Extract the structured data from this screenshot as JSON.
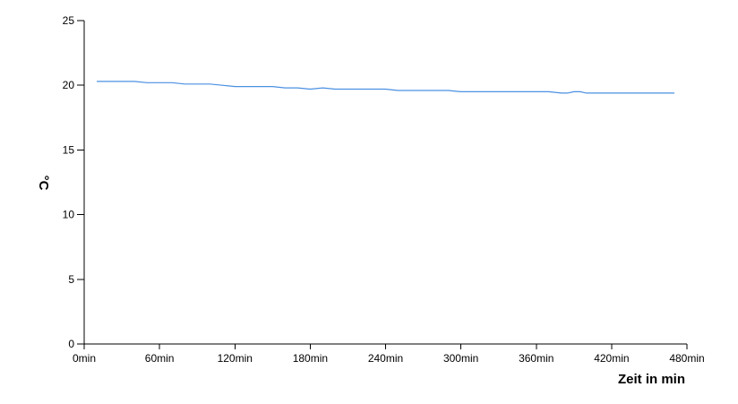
{
  "chart_data": {
    "type": "line",
    "title": "",
    "xlabel": "Zeit in min",
    "ylabel": "°C",
    "xlim": [
      0,
      480
    ],
    "ylim": [
      0,
      25
    ],
    "x_ticks": [
      0,
      60,
      120,
      180,
      240,
      300,
      360,
      420,
      480
    ],
    "x_tick_labels": [
      "0min",
      "60min",
      "120min",
      "180min",
      "240min",
      "300min",
      "360min",
      "420min",
      "480min"
    ],
    "y_ticks": [
      0,
      5,
      10,
      15,
      20,
      25
    ],
    "y_tick_labels": [
      "0",
      "5",
      "10",
      "15",
      "20",
      "25"
    ],
    "grid": false,
    "legend": "none",
    "series": [
      {
        "color": "#4a90e2",
        "x": [
          10,
          20,
          30,
          40,
          50,
          60,
          70,
          80,
          90,
          100,
          110,
          120,
          130,
          140,
          150,
          160,
          170,
          180,
          190,
          200,
          210,
          220,
          230,
          240,
          250,
          260,
          270,
          280,
          290,
          300,
          310,
          320,
          330,
          340,
          350,
          360,
          370,
          380,
          385,
          390,
          395,
          400,
          405,
          410,
          420,
          430,
          440,
          450,
          460,
          470
        ],
        "y": [
          20.3,
          20.3,
          20.3,
          20.3,
          20.2,
          20.2,
          20.2,
          20.1,
          20.1,
          20.1,
          20.0,
          19.9,
          19.9,
          19.9,
          19.9,
          19.8,
          19.8,
          19.7,
          19.8,
          19.7,
          19.7,
          19.7,
          19.7,
          19.7,
          19.6,
          19.6,
          19.6,
          19.6,
          19.6,
          19.5,
          19.5,
          19.5,
          19.5,
          19.5,
          19.5,
          19.5,
          19.5,
          19.4,
          19.4,
          19.5,
          19.5,
          19.4,
          19.4,
          19.4,
          19.4,
          19.4,
          19.4,
          19.4,
          19.4,
          19.4
        ]
      }
    ]
  }
}
